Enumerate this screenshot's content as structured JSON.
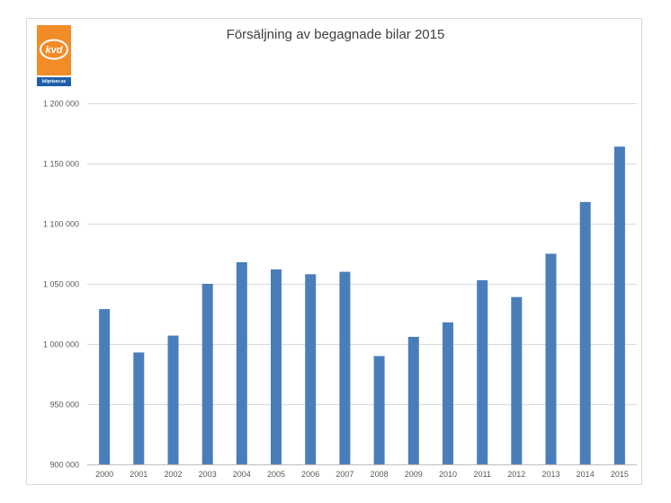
{
  "logo": {
    "name": "kvd",
    "caption": "bilpriser.se",
    "colors": {
      "orange": "#f28c28",
      "blue": "#1f5fa8"
    }
  },
  "chart_data": {
    "type": "bar",
    "title": "Försäljning av begagnade bilar 2015",
    "xlabel": "",
    "ylabel": "",
    "categories": [
      "2000",
      "2001",
      "2002",
      "2003",
      "2004",
      "2005",
      "2006",
      "2007",
      "2008",
      "2009",
      "2010",
      "2011",
      "2012",
      "2013",
      "2014",
      "2015"
    ],
    "values": [
      1029000,
      993000,
      1007000,
      1050000,
      1068000,
      1062000,
      1058000,
      1060000,
      990000,
      1006000,
      1018000,
      1053000,
      1039000,
      1075000,
      1118000,
      1164000
    ],
    "ylim": [
      900000,
      1200000
    ],
    "yticks": [
      {
        "value": 900000,
        "label": "900 000"
      },
      {
        "value": 950000,
        "label": "950 000"
      },
      {
        "value": 1000000,
        "label": "1 000 000"
      },
      {
        "value": 1050000,
        "label": "1 050 000"
      },
      {
        "value": 1100000,
        "label": "1 100 000"
      },
      {
        "value": 1150000,
        "label": "1 150 000"
      },
      {
        "value": 1200000,
        "label": "1 200 000"
      }
    ],
    "grid": true,
    "legend": "none",
    "bar_color": "#4a7ebb"
  }
}
